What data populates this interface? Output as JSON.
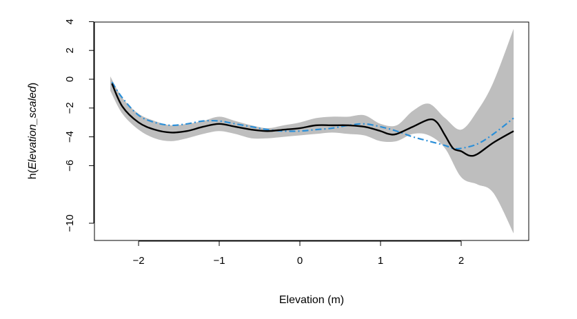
{
  "chart_data": {
    "type": "line",
    "title": "",
    "xlabel": "Elevation (m)",
    "ylabel_prefix": "h(",
    "ylabel_var": "Elevation_scaled",
    "ylabel_suffix": ")",
    "xlim": [
      -2.35,
      2.65
    ],
    "ylim": [
      -11,
      4
    ],
    "x_ticks": [
      -2,
      -1,
      0,
      1,
      2
    ],
    "x_tick_labels": [
      "−2",
      "−1",
      "0",
      "1",
      "2"
    ],
    "y_ticks": [
      4,
      2,
      0,
      -2,
      -4,
      -6,
      -10
    ],
    "y_tick_labels": [
      "4",
      "2",
      "0",
      "−2",
      "−4",
      "−6",
      "−10"
    ],
    "grid": false,
    "colors": {
      "band": "#bebebe",
      "estimate": "#000000",
      "dashed": "#2b8fd8"
    },
    "series": [
      {
        "role": "confidence-band-upper",
        "x": [
          -2.35,
          -2.2,
          -2.0,
          -1.8,
          -1.6,
          -1.4,
          -1.2,
          -1.0,
          -0.8,
          -0.6,
          -0.4,
          -0.2,
          0.0,
          0.2,
          0.4,
          0.6,
          0.8,
          1.0,
          1.2,
          1.4,
          1.6,
          1.8,
          2.0,
          2.2,
          2.4,
          2.65
        ],
        "values": [
          0.2,
          -1.3,
          -2.4,
          -2.9,
          -3.2,
          -3.1,
          -2.9,
          -2.6,
          -2.9,
          -3.2,
          -3.4,
          -3.2,
          -3.0,
          -2.7,
          -2.6,
          -2.6,
          -2.5,
          -3.1,
          -3.2,
          -2.2,
          -1.7,
          -2.7,
          -3.5,
          -2.2,
          -0.2,
          3.5
        ]
      },
      {
        "role": "confidence-band-lower",
        "x": [
          -2.35,
          -2.2,
          -2.0,
          -1.8,
          -1.6,
          -1.4,
          -1.2,
          -1.0,
          -0.8,
          -0.6,
          -0.4,
          -0.2,
          0.0,
          0.2,
          0.4,
          0.6,
          0.8,
          1.0,
          1.2,
          1.4,
          1.6,
          1.8,
          2.0,
          2.2,
          2.4,
          2.65
        ],
        "values": [
          -0.8,
          -2.4,
          -3.5,
          -4.1,
          -4.3,
          -4.1,
          -3.8,
          -3.6,
          -3.8,
          -4.1,
          -4.1,
          -4.0,
          -3.9,
          -3.8,
          -3.7,
          -3.8,
          -3.9,
          -4.3,
          -4.3,
          -3.8,
          -3.9,
          -4.8,
          -6.8,
          -7.3,
          -7.9,
          -10.7
        ]
      },
      {
        "role": "estimate",
        "x": [
          -2.33,
          -2.2,
          -2.0,
          -1.8,
          -1.6,
          -1.4,
          -1.2,
          -1.0,
          -0.8,
          -0.6,
          -0.4,
          -0.2,
          0.0,
          0.2,
          0.4,
          0.6,
          0.8,
          1.0,
          1.1,
          1.2,
          1.4,
          1.6,
          1.7,
          1.8,
          1.9,
          2.0,
          2.1,
          2.2,
          2.4,
          2.65
        ],
        "values": [
          -0.3,
          -1.9,
          -3.0,
          -3.5,
          -3.7,
          -3.6,
          -3.3,
          -3.1,
          -3.3,
          -3.5,
          -3.6,
          -3.5,
          -3.4,
          -3.2,
          -3.2,
          -3.2,
          -3.3,
          -3.6,
          -3.8,
          -3.8,
          -3.3,
          -2.8,
          -3.0,
          -3.9,
          -4.8,
          -5.0,
          -5.3,
          -5.2,
          -4.4,
          -3.6
        ]
      },
      {
        "role": "alternative-estimate",
        "x": [
          -2.33,
          -2.2,
          -2.0,
          -1.8,
          -1.6,
          -1.4,
          -1.2,
          -1.0,
          -0.8,
          -0.6,
          -0.4,
          -0.2,
          0.0,
          0.2,
          0.4,
          0.6,
          0.8,
          1.0,
          1.2,
          1.4,
          1.6,
          1.8,
          1.9,
          2.0,
          2.2,
          2.4,
          2.65
        ],
        "values": [
          -0.2,
          -1.3,
          -2.5,
          -3.0,
          -3.2,
          -3.1,
          -2.9,
          -2.9,
          -3.1,
          -3.3,
          -3.5,
          -3.6,
          -3.6,
          -3.5,
          -3.4,
          -3.2,
          -3.1,
          -3.3,
          -3.6,
          -4.0,
          -4.3,
          -4.6,
          -4.8,
          -4.8,
          -4.5,
          -3.8,
          -2.7
        ]
      }
    ]
  }
}
